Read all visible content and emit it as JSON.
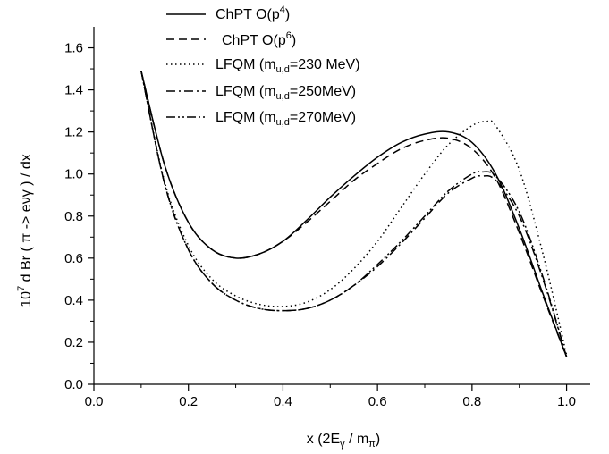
{
  "chart_data": {
    "type": "line",
    "title": "",
    "xlabel": {
      "pre": "x (2E",
      "sub1": "γ",
      "mid": " / m",
      "sub2": "π",
      "post": ")"
    },
    "ylabel": {
      "pre": "10",
      "sup": "7",
      "post": " d Br ( π -> eνγ ) / dx"
    },
    "xlim": [
      0.0,
      1.05
    ],
    "ylim": [
      0.0,
      1.7
    ],
    "xticks": [
      "0.0",
      "0.2",
      "0.4",
      "0.6",
      "0.8",
      "1.0"
    ],
    "yticks": [
      "0.0",
      "0.2",
      "0.4",
      "0.6",
      "0.8",
      "1.0",
      "1.2",
      "1.4",
      "1.6"
    ],
    "legend_position": "top-left",
    "series": [
      {
        "name": "ChPT O(p4)",
        "legend": {
          "pre": "ChPT O(p",
          "sup": "4",
          "post": ")"
        },
        "dash": "solid",
        "x": [
          0.1,
          0.15,
          0.2,
          0.25,
          0.3,
          0.35,
          0.4,
          0.45,
          0.5,
          0.55,
          0.6,
          0.65,
          0.7,
          0.75,
          0.8,
          0.85,
          0.9,
          0.95,
          1.0
        ],
        "y": [
          1.49,
          1.04,
          0.77,
          0.64,
          0.6,
          0.62,
          0.68,
          0.78,
          0.89,
          0.99,
          1.08,
          1.15,
          1.19,
          1.2,
          1.15,
          1.0,
          0.74,
          0.43,
          0.13
        ]
      },
      {
        "name": "ChPT O(p6)",
        "legend": {
          "pre": "ChPT O(p",
          "sup": "6",
          "post": ")"
        },
        "dash": "dashed",
        "x": [
          0.1,
          0.15,
          0.2,
          0.25,
          0.3,
          0.35,
          0.4,
          0.45,
          0.5,
          0.55,
          0.6,
          0.65,
          0.7,
          0.75,
          0.8,
          0.85,
          0.9,
          0.95,
          1.0
        ],
        "y": [
          1.49,
          1.04,
          0.77,
          0.64,
          0.6,
          0.62,
          0.68,
          0.77,
          0.87,
          0.97,
          1.05,
          1.12,
          1.16,
          1.17,
          1.12,
          0.98,
          0.72,
          0.42,
          0.13
        ]
      },
      {
        "name": "LFQM (mu,d=230 MeV)",
        "legend": {
          "pre": "LFQM (m",
          "sub": "u,d",
          "post": "=230 MeV)"
        },
        "dash": "dotted",
        "x": [
          0.1,
          0.15,
          0.2,
          0.25,
          0.3,
          0.35,
          0.4,
          0.45,
          0.5,
          0.55,
          0.6,
          0.65,
          0.7,
          0.75,
          0.8,
          0.83,
          0.85,
          0.9,
          0.95,
          1.0
        ],
        "y": [
          1.49,
          0.96,
          0.66,
          0.5,
          0.42,
          0.38,
          0.37,
          0.39,
          0.45,
          0.55,
          0.68,
          0.84,
          1.0,
          1.14,
          1.23,
          1.25,
          1.23,
          1.02,
          0.62,
          0.14
        ]
      },
      {
        "name": "LFQM (mu,d=250MeV)",
        "legend": {
          "pre": "LFQM (m",
          "sub": "u,d",
          "post": "=250MeV)"
        },
        "dash": "dashdot",
        "x": [
          0.1,
          0.15,
          0.2,
          0.25,
          0.3,
          0.35,
          0.4,
          0.45,
          0.5,
          0.55,
          0.6,
          0.65,
          0.7,
          0.75,
          0.8,
          0.82,
          0.85,
          0.9,
          0.95,
          1.0
        ],
        "y": [
          1.49,
          0.95,
          0.64,
          0.48,
          0.4,
          0.36,
          0.35,
          0.36,
          0.4,
          0.47,
          0.56,
          0.67,
          0.79,
          0.91,
          0.98,
          0.99,
          0.97,
          0.8,
          0.5,
          0.13
        ]
      },
      {
        "name": "LFQM (mu,d=270MeV)",
        "legend": {
          "pre": "LFQM (m",
          "sub": "u,d",
          "post": "=270MeV)"
        },
        "dash": "dashdotdot",
        "x": [
          0.1,
          0.15,
          0.2,
          0.25,
          0.3,
          0.35,
          0.4,
          0.45,
          0.5,
          0.55,
          0.6,
          0.65,
          0.7,
          0.75,
          0.8,
          0.82,
          0.85,
          0.9,
          0.95,
          1.0
        ],
        "y": [
          1.49,
          0.95,
          0.64,
          0.48,
          0.4,
          0.36,
          0.35,
          0.36,
          0.4,
          0.47,
          0.57,
          0.68,
          0.8,
          0.92,
          1.0,
          1.01,
          0.99,
          0.82,
          0.51,
          0.13
        ]
      }
    ]
  }
}
